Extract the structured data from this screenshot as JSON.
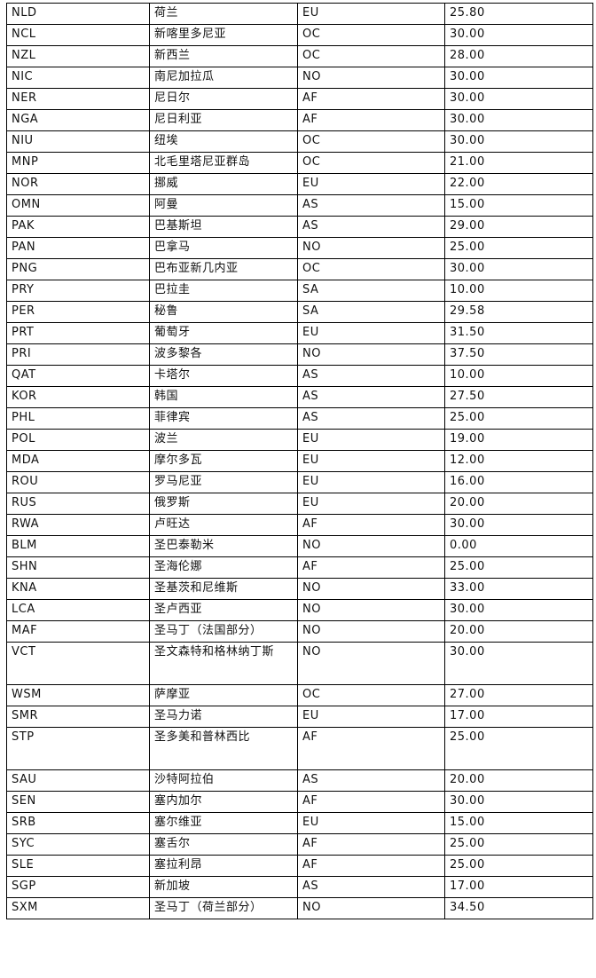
{
  "rows": [
    [
      "NLD",
      "荷兰",
      "EU",
      "25.80"
    ],
    [
      "NCL",
      "新喀里多尼亚",
      "OC",
      "30.00"
    ],
    [
      "NZL",
      "新西兰",
      "OC",
      "28.00"
    ],
    [
      "NIC",
      "南尼加拉瓜",
      "NO",
      "30.00"
    ],
    [
      "NER",
      "尼日尔",
      "AF",
      "30.00"
    ],
    [
      "NGA",
      "尼日利亚",
      "AF",
      "30.00"
    ],
    [
      "NIU",
      "纽埃",
      "OC",
      "30.00"
    ],
    [
      "MNP",
      "北毛里塔尼亚群岛",
      "OC",
      "21.00"
    ],
    [
      "NOR",
      "挪威",
      "EU",
      "22.00"
    ],
    [
      "OMN",
      "阿曼",
      "AS",
      "15.00"
    ],
    [
      "PAK",
      "巴基斯坦",
      "AS",
      "29.00"
    ],
    [
      "PAN",
      "巴拿马",
      "NO",
      "25.00"
    ],
    [
      "PNG",
      "巴布亚新几内亚",
      "OC",
      "30.00"
    ],
    [
      "PRY",
      "巴拉圭",
      "SA",
      "10.00"
    ],
    [
      "PER",
      "秘鲁",
      "SA",
      "29.58"
    ],
    [
      "PRT",
      "葡萄牙",
      "EU",
      "31.50"
    ],
    [
      "PRI",
      "波多黎各",
      "NO",
      "37.50"
    ],
    [
      "QAT",
      "卡塔尔",
      "AS",
      "10.00"
    ],
    [
      "KOR",
      "韩国",
      "AS",
      "27.50"
    ],
    [
      "PHL",
      "菲律宾",
      "AS",
      "25.00"
    ],
    [
      "POL",
      "波兰",
      "EU",
      "19.00"
    ],
    [
      "MDA",
      "摩尔多瓦",
      "EU",
      "12.00"
    ],
    [
      "ROU",
      "罗马尼亚",
      "EU",
      "16.00"
    ],
    [
      "RUS",
      "俄罗斯",
      "EU",
      "20.00"
    ],
    [
      "RWA",
      "卢旺达",
      "AF",
      "30.00"
    ],
    [
      "BLM",
      "圣巴泰勒米",
      "NO",
      "0.00"
    ],
    [
      "SHN",
      "圣海伦娜",
      "AF",
      "25.00"
    ],
    [
      "KNA",
      "圣基茨和尼维斯",
      "NO",
      "33.00"
    ],
    [
      "LCA",
      "圣卢西亚",
      "NO",
      "30.00"
    ],
    [
      "MAF",
      "圣马丁（法国部分）",
      "NO",
      "20.00"
    ],
    [
      "VCT",
      "圣文森特和格林纳丁斯",
      "NO",
      "30.00"
    ],
    [
      "WSM",
      "萨摩亚",
      "OC",
      "27.00"
    ],
    [
      "SMR",
      "圣马力诺",
      "EU",
      "17.00"
    ],
    [
      "STP",
      "圣多美和普林西比",
      "AF",
      "25.00"
    ],
    [
      "SAU",
      "沙特阿拉伯",
      "AS",
      "20.00"
    ],
    [
      "SEN",
      "塞内加尔",
      "AF",
      "30.00"
    ],
    [
      "SRB",
      "塞尔维亚",
      "EU",
      "15.00"
    ],
    [
      "SYC",
      "塞舌尔",
      "AF",
      "25.00"
    ],
    [
      "SLE",
      "塞拉利昂",
      "AF",
      "25.00"
    ],
    [
      "SGP",
      "新加坡",
      "AS",
      "17.00"
    ],
    [
      "SXM",
      "圣马丁（荷兰部分）",
      "NO",
      "34.50"
    ]
  ]
}
